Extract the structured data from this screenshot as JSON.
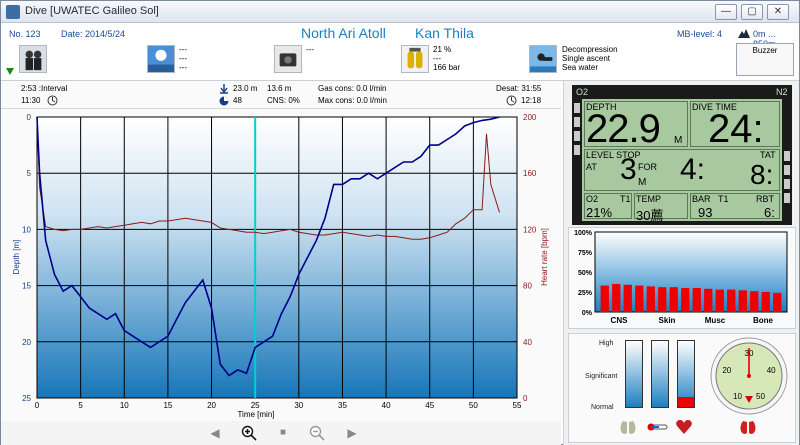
{
  "window": {
    "title": "Dive  [UWATEC Galileo Sol]",
    "btn_min": "—",
    "btn_max": "▢",
    "btn_close": "✕"
  },
  "header": {
    "dive_no": "No. 123",
    "date": "Date: 2014/5/24",
    "site": "North Ari Atoll",
    "spot": "Kan Thila",
    "mb_level": "MB-level: 4",
    "altitude": "0m ... 850m",
    "weather": [
      "---",
      "---",
      "---"
    ],
    "equipment": [
      "---"
    ],
    "tanks": [
      "21 %",
      "---",
      "166 bar"
    ],
    "deco": [
      "Decompression",
      "Single ascent",
      "Sea water"
    ],
    "buzzer": "Buzzer"
  },
  "stats": {
    "interval": "2:53 :Interval",
    "time_start": "11:30",
    "max_depth": "23.0 m",
    "avg_depth": "13.6 m",
    "temp": "48",
    "cns": "CNS:  0%",
    "gas_cons": "Gas cons:  0.0 l/min",
    "max_cons": "Max cons:  0.0 l/min",
    "desat": "Desat:  31:55",
    "time_end": "12:18"
  },
  "chart_data": {
    "type": "line",
    "xlabel": "Time [min]",
    "ylabel_left": "Depth [m]",
    "ylabel_right": "Heart rate [bpm]",
    "x_ticks": [
      0,
      5,
      10,
      15,
      20,
      25,
      30,
      35,
      40,
      45,
      50,
      55
    ],
    "y_left_ticks": [
      0,
      5,
      10,
      15,
      20,
      25
    ],
    "y_right_ticks": [
      200,
      160,
      120,
      80,
      40,
      0
    ],
    "xlim": [
      0,
      55
    ],
    "ylim_left": [
      0,
      25
    ],
    "ylim_right": [
      0,
      200
    ],
    "cursor_x": 25,
    "series": [
      {
        "name": "Depth",
        "color": "#00008b",
        "axis": "left",
        "x": [
          0,
          0.3,
          1,
          2,
          3,
          4,
          5,
          6,
          7,
          8,
          9,
          10,
          11,
          12,
          13,
          14,
          15,
          16,
          17,
          18,
          19,
          20,
          21,
          22,
          23,
          24,
          25,
          26,
          27,
          28,
          29,
          30,
          31,
          32,
          33,
          34,
          35,
          36,
          37,
          38,
          39,
          40,
          41,
          42,
          43,
          44,
          45,
          46,
          47,
          48,
          49,
          50,
          51,
          52,
          53
        ],
        "y": [
          0,
          5,
          11,
          14,
          15.5,
          15,
          16,
          17,
          17.5,
          18,
          17.5,
          19,
          19.5,
          20,
          20.5,
          20,
          19.5,
          18,
          16.5,
          15.5,
          14.5,
          17,
          22,
          23,
          22.5,
          22.8,
          20.5,
          20,
          19.5,
          17.5,
          16,
          14,
          12.5,
          11,
          9,
          6,
          6,
          5.5,
          5.5,
          5,
          5.5,
          5,
          4.5,
          4,
          4,
          3.5,
          2.5,
          2.5,
          2,
          1.5,
          0.8,
          0.5,
          0.3,
          0.2,
          0
        ]
      },
      {
        "name": "Heart rate",
        "color": "#8b1a1a",
        "axis": "right",
        "x": [
          0,
          0.3,
          1,
          2,
          3,
          4,
          5,
          6,
          7,
          8,
          9,
          10,
          11,
          12,
          13,
          14,
          15,
          16,
          17,
          18,
          19,
          20,
          21,
          22,
          23,
          24,
          25,
          26,
          27,
          28,
          29,
          30,
          31,
          32,
          33,
          34,
          35,
          36,
          37,
          38,
          39,
          40,
          41,
          42,
          43,
          44,
          45,
          46,
          47,
          48,
          49,
          50,
          51,
          51.5,
          52,
          53
        ],
        "y": [
          200,
          150,
          122,
          120,
          119,
          120,
          120,
          121,
          122,
          121,
          122,
          123,
          124,
          125,
          124,
          126,
          126,
          127,
          128,
          127,
          126,
          125,
          121,
          120,
          119,
          118,
          118,
          117,
          118,
          119,
          120,
          118,
          117,
          116,
          116,
          117,
          118,
          117,
          116,
          115,
          116,
          115,
          115,
          114,
          113,
          113,
          114,
          116,
          118,
          124,
          128,
          134,
          134,
          188,
          152,
          132
        ]
      }
    ]
  },
  "computer": {
    "o2": "O2",
    "n2": "N2",
    "depth_label": "DEPTH",
    "depth_value": "22.9",
    "depth_unit": "M",
    "divetime_label": "DIVE TIME",
    "divetime_value": "24:",
    "levelstop_label": "LEVEL STOP",
    "at_label": "AT",
    "for_label": "FOR",
    "stop_depth": "3",
    "stop_unit": "M",
    "stop_time": "4:",
    "tat_label": "TAT",
    "tat_value": "8:",
    "o2_label": "O2",
    "t1_label": "T1",
    "o2_value": "21%",
    "temp_label": "TEMP",
    "temp_value": "30薦",
    "bar_label": "BAR",
    "bar_t1": "T1",
    "bar_value": "93",
    "rbt_label": "RBT",
    "rbt_value": "6:"
  },
  "tissue_chart": {
    "y_ticks": [
      "100%",
      "75%",
      "50%",
      "25%",
      "0%"
    ],
    "categories": [
      "CNS",
      "Skin",
      "Musc",
      "Bone"
    ],
    "values": [
      33,
      35,
      34,
      33,
      32,
      31,
      31,
      30,
      30,
      29,
      28,
      28,
      27,
      26,
      25,
      24
    ],
    "bar_color": "#ee0000"
  },
  "gauges": {
    "levels": [
      "High",
      "Significant",
      "Normal"
    ],
    "tube_fill": [
      0,
      0,
      0.15
    ],
    "dial_ticks": [
      "10",
      "20",
      "30",
      "40",
      "50"
    ],
    "dial_value": 30
  }
}
